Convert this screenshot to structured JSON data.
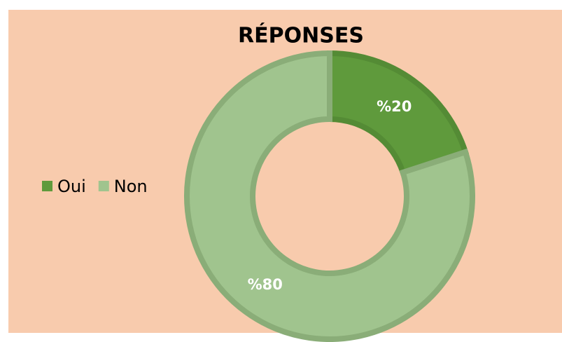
{
  "chart_data": {
    "type": "pie",
    "title": "RÉPONSES",
    "categories": [
      "Oui",
      "Non"
    ],
    "values": [
      20,
      80
    ],
    "value_labels": [
      "%20",
      "%80"
    ],
    "colors": [
      "#5f9a3c",
      "#a0c48e"
    ],
    "donut": true,
    "legend": "left"
  }
}
